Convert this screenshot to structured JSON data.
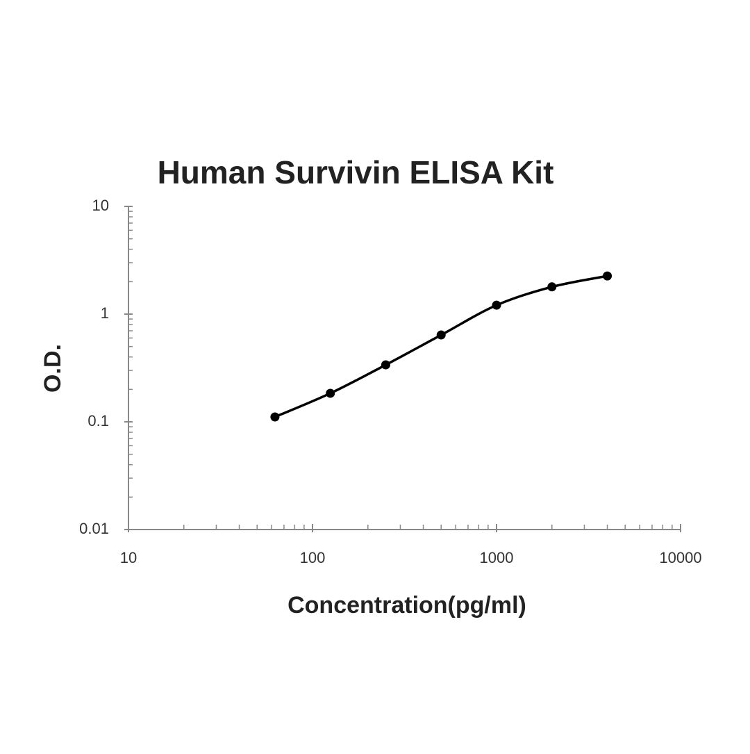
{
  "chart_data": {
    "type": "scatter",
    "title": "Human Survivin ELISA Kit",
    "xlabel": "Concentration(pg/ml)",
    "ylabel": "O.D.",
    "x": [
      62.5,
      125,
      250,
      500,
      1000,
      2000,
      4000
    ],
    "values": [
      0.111,
      0.184,
      0.338,
      0.64,
      1.21,
      1.79,
      2.26
    ],
    "color": "#000000",
    "curve": true,
    "xscale": "log",
    "yscale": "log",
    "xlim": [
      10,
      10000
    ],
    "ylim": [
      0.01,
      10
    ],
    "xticks": [
      10,
      100,
      1000,
      10000
    ],
    "yticks": [
      0.01,
      0.1,
      1,
      10
    ]
  }
}
